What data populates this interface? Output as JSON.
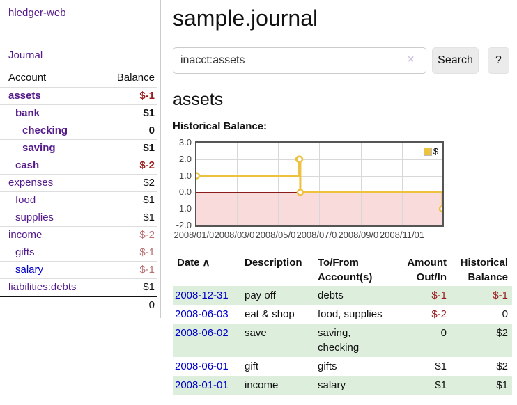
{
  "app_title": "hledger-web",
  "colors": {
    "link_purple": "#551a8b",
    "link_blue": "#0000cc",
    "negative_dark": "#9b1c1c",
    "negative_light": "#b87272",
    "row_stripe_green": "#ddeedd",
    "series_gold": "#edc240",
    "negative_region_pink": "#f9dbdb",
    "zero_line_red": "#8b1c1c"
  },
  "sidebar": {
    "journal_link": "Journal",
    "account_header": "Account",
    "balance_header": "Balance",
    "accounts": [
      {
        "name": "assets",
        "balance": "$-1",
        "indent": 0,
        "bold": true,
        "balance_style": "neg",
        "name_style": "purple"
      },
      {
        "name": "bank",
        "balance": "$1",
        "indent": 1,
        "bold": true,
        "balance_style": "pos",
        "name_style": "purple"
      },
      {
        "name": "checking",
        "balance": "0",
        "indent": 2,
        "bold": true,
        "balance_style": "pos",
        "name_style": "purple"
      },
      {
        "name": "saving",
        "balance": "$1",
        "indent": 2,
        "bold": true,
        "balance_style": "pos",
        "name_style": "purple"
      },
      {
        "name": "cash",
        "balance": "$-2",
        "indent": 1,
        "bold": true,
        "balance_style": "neg",
        "name_style": "purple"
      },
      {
        "name": "expenses",
        "balance": "$2",
        "indent": 0,
        "bold": false,
        "balance_style": "pos",
        "name_style": "purple"
      },
      {
        "name": "food",
        "balance": "$1",
        "indent": 1,
        "bold": false,
        "balance_style": "pos",
        "name_style": "purple"
      },
      {
        "name": "supplies",
        "balance": "$1",
        "indent": 1,
        "bold": false,
        "balance_style": "pos",
        "name_style": "purple"
      },
      {
        "name": "income",
        "balance": "$-2",
        "indent": 0,
        "bold": false,
        "balance_style": "neg-light",
        "name_style": "purple"
      },
      {
        "name": "gifts",
        "balance": "$-1",
        "indent": 1,
        "bold": false,
        "balance_style": "neg-light",
        "name_style": "purple"
      },
      {
        "name": "salary",
        "balance": "$-1",
        "indent": 1,
        "bold": false,
        "balance_style": "neg-light",
        "name_style": "blue"
      },
      {
        "name": "liabilities:debts",
        "balance": "$1",
        "indent": 0,
        "bold": false,
        "balance_style": "pos",
        "name_style": "purple"
      }
    ],
    "total": "0"
  },
  "main": {
    "page_title": "sample.journal",
    "search": {
      "value": "inacct:assets",
      "clear_icon": "×",
      "search_button": "Search",
      "help_button": "?"
    },
    "account_heading": "assets",
    "section_label": "Historical Balance:"
  },
  "chart_data": {
    "type": "line",
    "step": true,
    "title": "Historical Balance",
    "series": [
      {
        "name": "$",
        "color": "#edc240",
        "points": [
          {
            "date": "2008-01-01",
            "value": 1.0
          },
          {
            "date": "2008-06-01",
            "value": 2.0
          },
          {
            "date": "2008-06-02",
            "value": 2.0
          },
          {
            "date": "2008-06-03",
            "value": 0.0
          },
          {
            "date": "2008-12-31",
            "value": -1.0
          }
        ]
      }
    ],
    "x_range": [
      "2008-01-01",
      "2008-12-31"
    ],
    "x_ticks": [
      "2008/01/01",
      "2008/03/01",
      "2008/05/01",
      "2008/07/01",
      "2008/09/01",
      "2008/11/01"
    ],
    "y_ticks": [
      "3.0",
      "2.0",
      "1.0",
      "0.0",
      "-1.0",
      "-2.0"
    ],
    "ylim": [
      -2,
      3
    ],
    "grid": true,
    "negative_region": true,
    "legend": {
      "label": "$",
      "position": "top-right"
    }
  },
  "register": {
    "headers": {
      "date": "Date",
      "sort_icon": "∧",
      "description": "Description",
      "account": "To/From Account(s)",
      "amount": "Amount Out/In",
      "balance": "Historical Balance"
    },
    "rows": [
      {
        "date": "2008-12-31",
        "description": "pay off",
        "accounts": "debts",
        "amount": "$-1",
        "amount_style": "neg",
        "balance": "$-1",
        "balance_style": "neg"
      },
      {
        "date": "2008-06-03",
        "description": "eat & shop",
        "accounts": "food, supplies",
        "amount": "$-2",
        "amount_style": "neg",
        "balance": "0",
        "balance_style": "pos"
      },
      {
        "date": "2008-06-02",
        "description": "save",
        "accounts": "saving, checking",
        "amount": "0",
        "amount_style": "pos",
        "balance": "$2",
        "balance_style": "pos"
      },
      {
        "date": "2008-06-01",
        "description": "gift",
        "accounts": "gifts",
        "amount": "$1",
        "amount_style": "pos",
        "balance": "$2",
        "balance_style": "pos"
      },
      {
        "date": "2008-01-01",
        "description": "income",
        "accounts": "salary",
        "amount": "$1",
        "amount_style": "pos",
        "balance": "$1",
        "balance_style": "pos"
      }
    ]
  }
}
